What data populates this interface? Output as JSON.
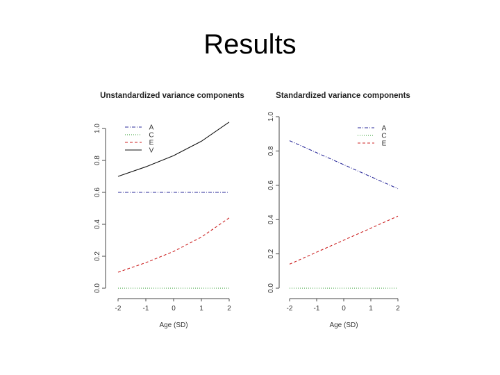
{
  "slide": {
    "title": "Results"
  },
  "chart_data": [
    {
      "type": "line",
      "title": "Unstandardized variance components",
      "xlabel": "Age (SD)",
      "ylabel": "",
      "xlim": [
        -2,
        2
      ],
      "ylim": [
        0,
        1.0
      ],
      "x_ticks": [
        "-2",
        "-1",
        "0",
        "1",
        "2"
      ],
      "y_ticks": [
        "0.0",
        "0.2",
        "0.4",
        "0.6",
        "0.8",
        "1.0"
      ],
      "legend_position": "top-left",
      "legend": [
        "A",
        "C",
        "E",
        "V"
      ],
      "x": [
        -2,
        -1,
        0,
        1,
        2
      ],
      "series": [
        {
          "name": "A",
          "color": "#2a2a9a",
          "dash": "dotdash",
          "values": [
            0.6,
            0.6,
            0.6,
            0.6,
            0.6
          ]
        },
        {
          "name": "C",
          "color": "#2a9a2a",
          "dash": "dotted",
          "values": [
            0.0,
            0.0,
            0.0,
            0.0,
            0.0
          ]
        },
        {
          "name": "E",
          "color": "#cc2222",
          "dash": "dashed",
          "values": [
            0.1,
            0.16,
            0.23,
            0.32,
            0.44
          ]
        },
        {
          "name": "V",
          "color": "#111111",
          "dash": "solid",
          "values": [
            0.7,
            0.76,
            0.83,
            0.92,
            1.04
          ]
        }
      ]
    },
    {
      "type": "line",
      "title": "Standardized variance components",
      "xlabel": "Age (SD)",
      "ylabel": "",
      "xlim": [
        -2,
        2
      ],
      "ylim": [
        0,
        1.0
      ],
      "x_ticks": [
        "-2",
        "-1",
        "0",
        "1",
        "2"
      ],
      "y_ticks": [
        "0.0",
        "0.2",
        "0.4",
        "0.6",
        "0.8",
        "1.0"
      ],
      "legend_position": "top-right",
      "legend": [
        "A",
        "C",
        "E"
      ],
      "x": [
        -2,
        -1,
        0,
        1,
        2
      ],
      "series": [
        {
          "name": "A",
          "color": "#2a2a9a",
          "dash": "dotdash",
          "values": [
            0.86,
            0.79,
            0.72,
            0.65,
            0.58
          ]
        },
        {
          "name": "C",
          "color": "#2a9a2a",
          "dash": "dotted",
          "values": [
            0.0,
            0.0,
            0.0,
            0.0,
            0.0
          ]
        },
        {
          "name": "E",
          "color": "#cc2222",
          "dash": "dashed",
          "values": [
            0.14,
            0.21,
            0.28,
            0.35,
            0.42
          ]
        }
      ]
    }
  ]
}
